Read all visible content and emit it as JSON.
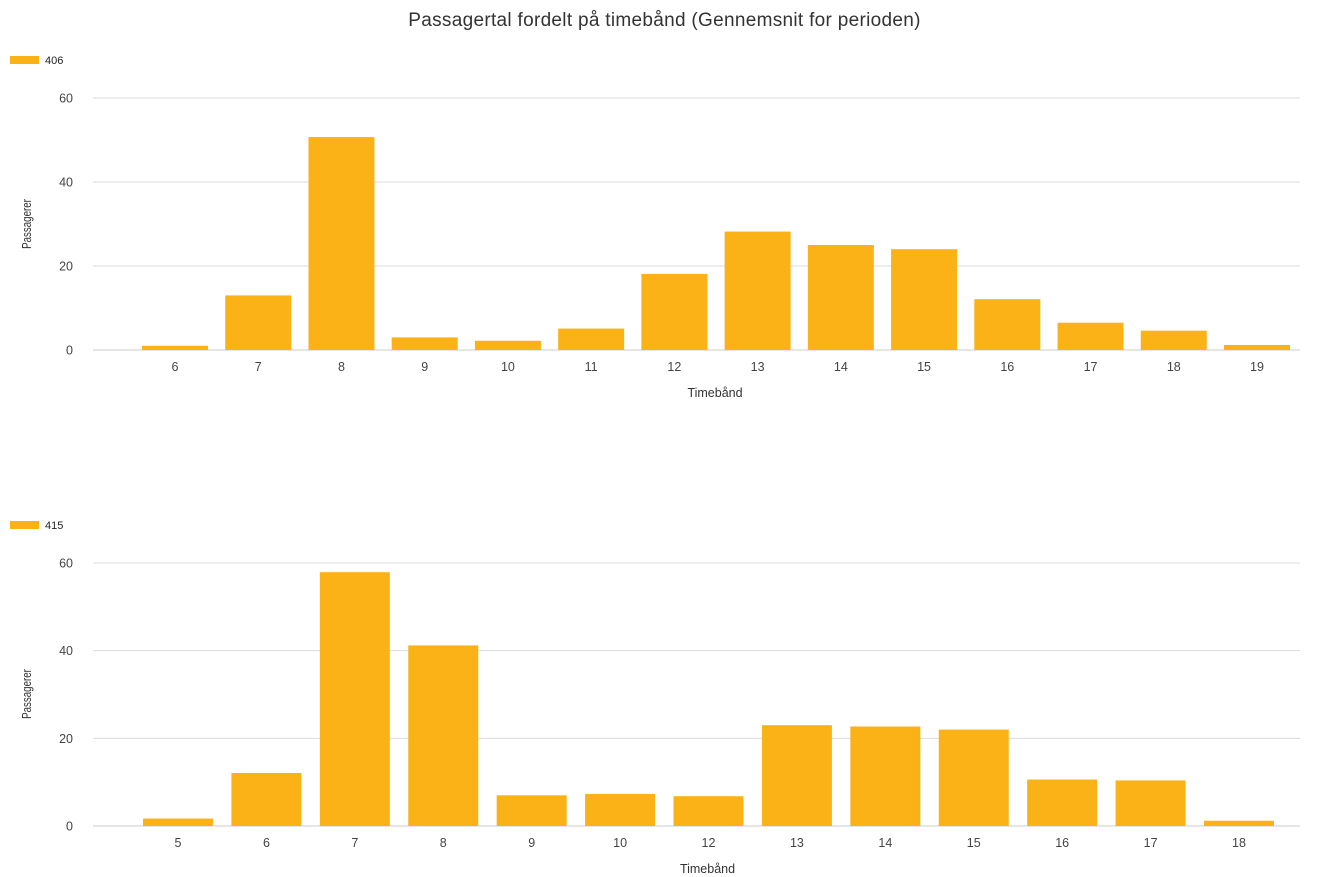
{
  "page": {
    "title": "Passagertal fordelt på timebånd (Gennemsnit for perioden)"
  },
  "colors": {
    "bar": "#FBB217",
    "grid": "#dcdcdc",
    "axis": "#cccccc"
  },
  "chart_data": [
    {
      "type": "bar",
      "title": "",
      "legend": [
        "406"
      ],
      "legend_position": "top-left",
      "xlabel": "Timebånd",
      "ylabel": "Passagerer",
      "ylim": [
        0,
        60
      ],
      "yticks": [
        0,
        20,
        40,
        60
      ],
      "grid": true,
      "categories": [
        "6",
        "7",
        "8",
        "9",
        "10",
        "11",
        "12",
        "13",
        "14",
        "15",
        "16",
        "17",
        "18",
        "19"
      ],
      "series": [
        {
          "name": "406",
          "values": [
            1,
            13,
            50.7,
            3,
            2.2,
            5.1,
            18.1,
            28.2,
            25,
            24,
            12.1,
            6.5,
            4.6,
            1.2
          ]
        }
      ]
    },
    {
      "type": "bar",
      "title": "",
      "legend": [
        "415"
      ],
      "legend_position": "top-left",
      "xlabel": "Timebånd",
      "ylabel": "Passagerer",
      "ylim": [
        0,
        60
      ],
      "yticks": [
        0,
        20,
        40,
        60
      ],
      "grid": true,
      "categories": [
        "5",
        "6",
        "7",
        "8",
        "9",
        "10",
        "12",
        "13",
        "14",
        "15",
        "16",
        "17",
        "18"
      ],
      "series": [
        {
          "name": "415",
          "values": [
            1.7,
            12.1,
            57.9,
            41.2,
            7,
            7.3,
            6.8,
            23,
            22.7,
            22,
            10.6,
            10.4,
            1.2
          ]
        }
      ]
    }
  ]
}
